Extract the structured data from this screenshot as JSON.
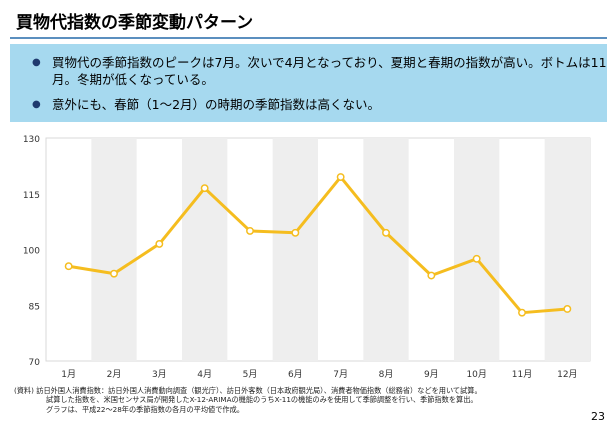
{
  "page": {
    "title": "買物代指数の季節変動パターン",
    "bullets": [
      "買物代の季節指数のピークは7月。次いで4月となっており、夏期と春期の指数が高い。ボトムは11月。冬期が低くなっている。",
      "意外にも、春節（1～2月）の時期の季節指数は高くない。"
    ],
    "notes": [
      "(資料) 訪日外国人消費指数：訪日外国人消費動向調査（観光庁）、訪日外客数（日本政府観光局）、消費者物価指数（総務省）などを用いて試算。",
      "試算した指数を、米国センサス局が開発したX-12-ARIMAの機能のうちX-11の機能のみを使用して季節調整を行い、季節指数を算出。",
      "グラフは、平成22～28年の季節指数の各月の平均値で作成。"
    ],
    "page_number": "23"
  },
  "colors": {
    "summary_bg": "#a6d9ef",
    "line": "#f5bd1f",
    "marker_fill": "#ffffff",
    "band": "#eeeeee",
    "rule": "#5b8fbf"
  },
  "chart_data": {
    "type": "line",
    "categories": [
      "1月",
      "2月",
      "3月",
      "4月",
      "5月",
      "6月",
      "7月",
      "8月",
      "9月",
      "10月",
      "11月",
      "12月"
    ],
    "series": [
      {
        "values": [
          95.5,
          93.5,
          101.5,
          116.5,
          105,
          104.5,
          119.5,
          104.5,
          93,
          97.5,
          83,
          84
        ]
      }
    ],
    "ylim": [
      70,
      130
    ],
    "yticks": [
      70,
      85,
      100,
      115,
      130
    ],
    "alternating_column_bands": true,
    "grid": false,
    "legend": "none"
  }
}
